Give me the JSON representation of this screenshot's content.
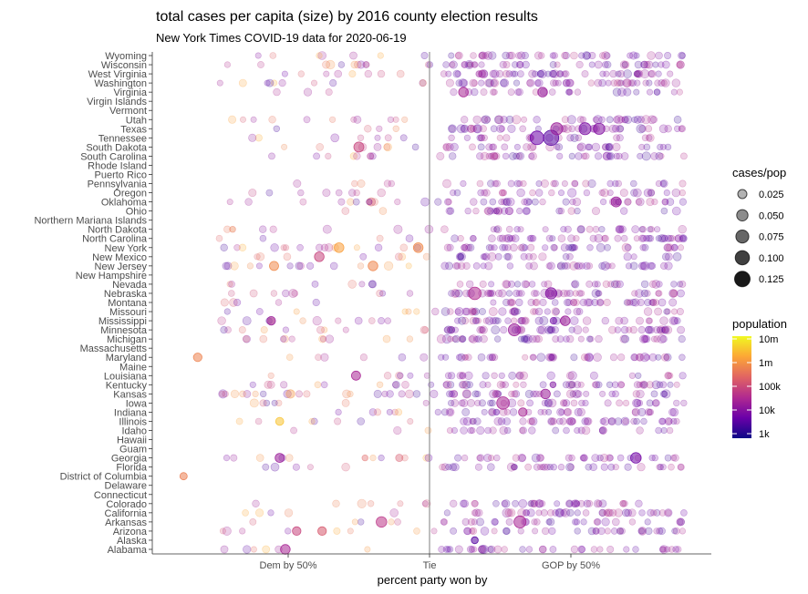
{
  "chart_data": {
    "type": "scatter",
    "title": "total cases per capita (size) by 2016 county election results",
    "subtitle": "New York Times COVID-19 data for 2020-06-19",
    "xlabel": "percent party won by",
    "x_ticks": [
      {
        "value": -0.5,
        "label": "Dem by 50%"
      },
      {
        "value": 0,
        "label": "Tie"
      },
      {
        "value": 0.5,
        "label": "GOP by 50%"
      }
    ],
    "xlim": [
      -0.96,
      0.96
    ],
    "reference_line_x": 0,
    "categories": [
      "Wyoming",
      "Wisconsin",
      "West Virginia",
      "Washington",
      "Virginia",
      "Virgin Islands",
      "Vermont",
      "Utah",
      "Texas",
      "Tennessee",
      "South Dakota",
      "South Carolina",
      "Rhode Island",
      "Puerto Rico",
      "Pennsylvania",
      "Oregon",
      "Oklahoma",
      "Ohio",
      "Northern Mariana Islands",
      "North Dakota",
      "North Carolina",
      "New York",
      "New Mexico",
      "New Jersey",
      "New Hampshire",
      "Nevada",
      "Nebraska",
      "Montana",
      "Missouri",
      "Mississippi",
      "Minnesota",
      "Michigan",
      "Massachusetts",
      "Maryland",
      "Maine",
      "Louisiana",
      "Kentucky",
      "Kansas",
      "Iowa",
      "Indiana",
      "Illinois",
      "Idaho",
      "Hawaii",
      "Guam",
      "Georgia",
      "Florida",
      "District of Columbia",
      "Delaware",
      "Connecticut",
      "Colorado",
      "California",
      "Arkansas",
      "Arizona",
      "Alaska",
      "Alabama"
    ],
    "size_legend": {
      "title": "cases/pop",
      "breaks": [
        0.025,
        0.05,
        0.075,
        0.1,
        0.125
      ],
      "labels": [
        "0.025",
        "0.050",
        "0.075",
        "0.100",
        "0.125"
      ]
    },
    "color_legend": {
      "title": "population",
      "scale": "log",
      "palette": "plasma",
      "breaks": [
        1000,
        10000,
        100000,
        1000000,
        10000000
      ],
      "labels": [
        "1k",
        "10k",
        "100k",
        "1m",
        "10m"
      ],
      "colors": [
        "#0d0887",
        "#6a00a8",
        "#b12a90",
        "#e16462",
        "#fca636",
        "#f0f921"
      ]
    },
    "highlighted_points": [
      {
        "state": "Tennessee",
        "x": 0.43,
        "cases_per_pop": 0.12,
        "population": 3000
      },
      {
        "state": "Tennessee",
        "x": 0.38,
        "cases_per_pop": 0.09,
        "population": 5000
      },
      {
        "state": "Texas",
        "x": 0.45,
        "cases_per_pop": 0.06,
        "population": 20000
      },
      {
        "state": "Texas",
        "x": 0.55,
        "cases_per_pop": 0.06,
        "population": 8000
      },
      {
        "state": "Texas",
        "x": 0.6,
        "cases_per_pop": 0.05,
        "population": 10000
      },
      {
        "state": "Nebraska",
        "x": 0.16,
        "cases_per_pop": 0.07,
        "population": 40000
      },
      {
        "state": "Nebraska",
        "x": 0.43,
        "cases_per_pop": 0.05,
        "population": 10000
      },
      {
        "state": "Iowa",
        "x": 0.26,
        "cases_per_pop": 0.07,
        "population": 30000
      },
      {
        "state": "Minnesota",
        "x": 0.3,
        "cases_per_pop": 0.06,
        "population": 20000
      },
      {
        "state": "Arkansas",
        "x": 0.32,
        "cases_per_pop": 0.06,
        "population": 30000
      },
      {
        "state": "Arkansas",
        "x": -0.17,
        "cases_per_pop": 0.04,
        "population": 60000
      },
      {
        "state": "South Dakota",
        "x": -0.25,
        "cases_per_pop": 0.035,
        "population": 100000
      },
      {
        "state": "Georgia",
        "x": 0.73,
        "cases_per_pop": 0.04,
        "population": 6000
      },
      {
        "state": "Georgia",
        "x": -0.53,
        "cases_per_pop": 0.025,
        "population": 20000
      },
      {
        "state": "New York",
        "x": -0.04,
        "cases_per_pop": 0.03,
        "population": 1000000
      },
      {
        "state": "New York",
        "x": -0.32,
        "cases_per_pop": 0.03,
        "population": 2000000
      },
      {
        "state": "New Jersey",
        "x": -0.2,
        "cases_per_pop": 0.03,
        "population": 900000
      },
      {
        "state": "New Jersey",
        "x": -0.55,
        "cases_per_pop": 0.025,
        "population": 1000000
      },
      {
        "state": "New Mexico",
        "x": -0.39,
        "cases_per_pop": 0.03,
        "population": 100000
      },
      {
        "state": "Virginia",
        "x": 0.12,
        "cases_per_pop": 0.03,
        "population": 30000
      },
      {
        "state": "Virginia",
        "x": 0.4,
        "cases_per_pop": 0.03,
        "population": 20000
      },
      {
        "state": "Oklahoma",
        "x": 0.66,
        "cases_per_pop": 0.035,
        "population": 20000
      },
      {
        "state": "Kansas",
        "x": 0.41,
        "cases_per_pop": 0.03,
        "population": 20000
      },
      {
        "state": "Mississippi",
        "x": 0.48,
        "cases_per_pop": 0.03,
        "population": 20000
      },
      {
        "state": "Mississippi",
        "x": -0.56,
        "cases_per_pop": 0.02,
        "population": 20000
      },
      {
        "state": "Arizona",
        "x": -0.47,
        "cases_per_pop": 0.02,
        "population": 100000
      },
      {
        "state": "Arizona",
        "x": -0.38,
        "cases_per_pop": 0.02,
        "population": 200000
      },
      {
        "state": "Alabama",
        "x": -0.51,
        "cases_per_pop": 0.03,
        "population": 30000
      },
      {
        "state": "Louisiana",
        "x": -0.26,
        "cases_per_pop": 0.025,
        "population": 30000
      },
      {
        "state": "Indiana",
        "x": 0.33,
        "cases_per_pop": 0.02,
        "population": 30000
      },
      {
        "state": "Alaska",
        "x": 0.16,
        "cases_per_pop": 0.008,
        "population": 3000
      },
      {
        "state": "Maryland",
        "x": -0.82,
        "cases_per_pop": 0.02,
        "population": 800000
      },
      {
        "state": "District of Columbia",
        "x": -0.87,
        "cases_per_pop": 0.01,
        "population": 700000
      },
      {
        "state": "Illinois",
        "x": -0.53,
        "cases_per_pop": 0.015,
        "population": 5000000
      }
    ]
  }
}
